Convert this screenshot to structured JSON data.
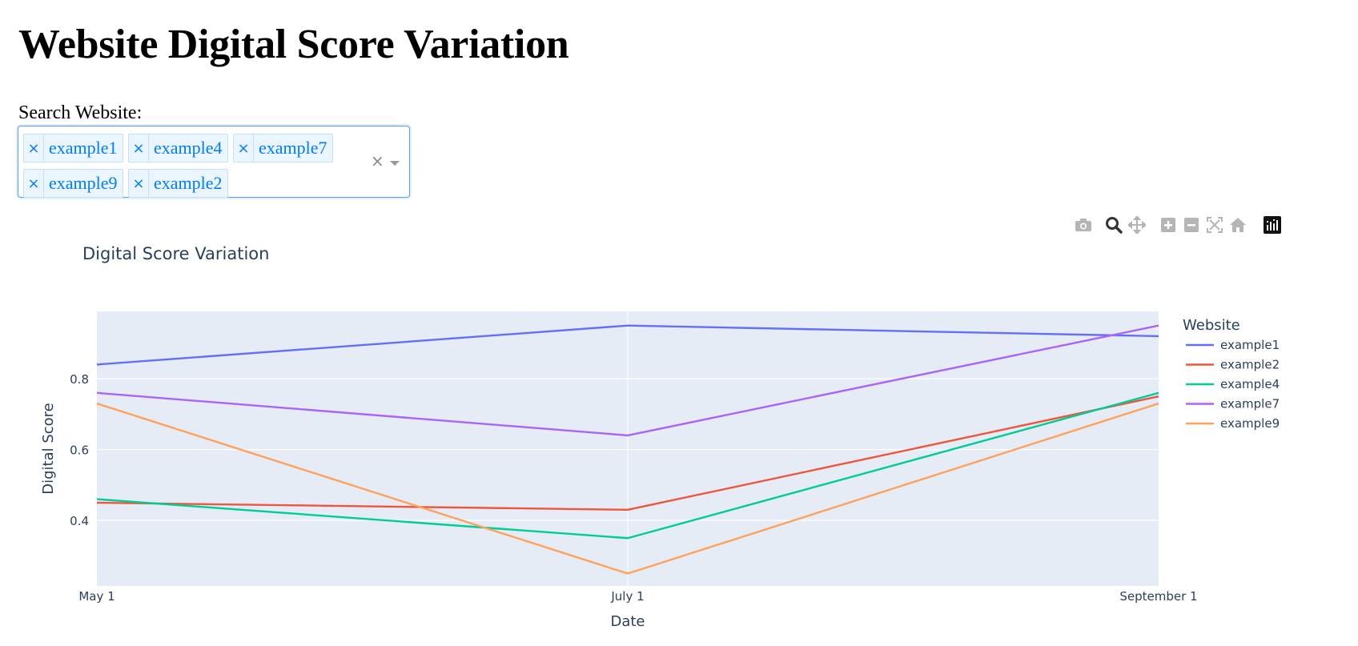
{
  "page": {
    "title": "Website Digital Score Variation"
  },
  "search": {
    "label": "Search Website:",
    "selected": [
      "example1",
      "example4",
      "example7",
      "example9",
      "example2"
    ],
    "clear_symbol": "×",
    "remove_symbol": "×"
  },
  "modebar": {
    "buttons": [
      "camera-icon",
      "zoom-icon",
      "pan-icon",
      "zoom-in-icon",
      "zoom-out-icon",
      "autoscale-icon",
      "reset-axes-icon",
      "plotly-logo-icon"
    ]
  },
  "colors": {
    "plot_bg": "#e5ecf6",
    "grid": "#ffffff",
    "text": "#2a3f5f",
    "chip_bg": "#ebf5ff",
    "chip_border": "#c2e0ff",
    "chip_text": "#007eff"
  },
  "chart_data": {
    "type": "line",
    "title": "Digital Score Variation",
    "xlabel": "Date",
    "ylabel": "Digital Score",
    "x": [
      "May 1",
      "July 1",
      "September 1"
    ],
    "ylim": [
      0.215,
      0.99
    ],
    "yticks": [
      0.4,
      0.6,
      0.8
    ],
    "grid": true,
    "legend": {
      "title": "Website",
      "placement": "right"
    },
    "series": [
      {
        "name": "example1",
        "color": "#636efa",
        "values": [
          0.84,
          0.95,
          0.92
        ]
      },
      {
        "name": "example2",
        "color": "#ef553b",
        "values": [
          0.45,
          0.43,
          0.75
        ]
      },
      {
        "name": "example4",
        "color": "#00cc96",
        "values": [
          0.46,
          0.35,
          0.76
        ]
      },
      {
        "name": "example7",
        "color": "#ab63fa",
        "values": [
          0.76,
          0.64,
          0.95
        ]
      },
      {
        "name": "example9",
        "color": "#ffa15a",
        "values": [
          0.73,
          0.25,
          0.73
        ]
      }
    ]
  }
}
